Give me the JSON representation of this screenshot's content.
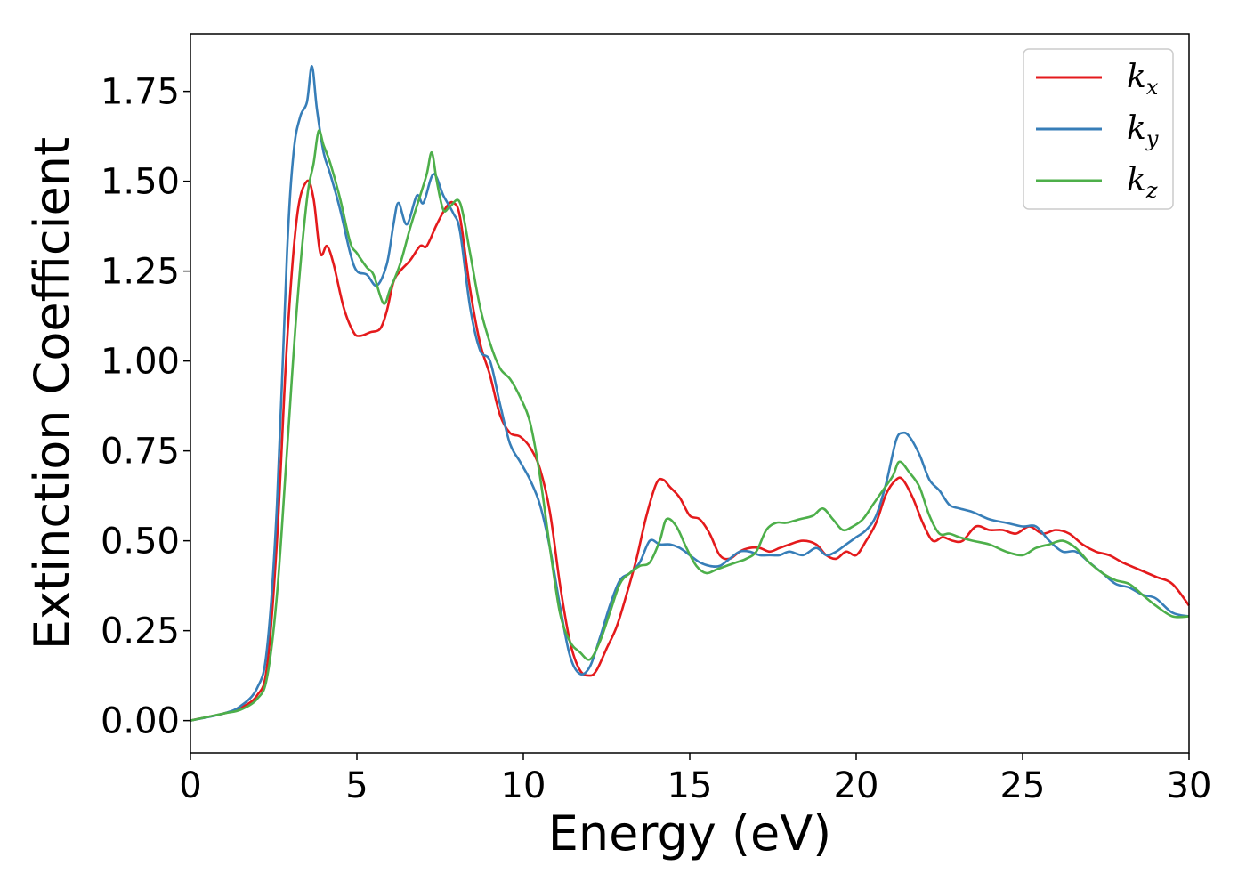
{
  "chart_data": {
    "type": "line",
    "title": "",
    "xlabel": "Energy (eV)",
    "ylabel": "Extinction Coefficient",
    "xlim": [
      0,
      30
    ],
    "ylim": [
      -0.09,
      1.91
    ],
    "xticks": [
      0,
      5,
      10,
      15,
      20,
      25,
      30
    ],
    "xtick_labels": [
      "0",
      "5",
      "10",
      "15",
      "20",
      "25",
      "30"
    ],
    "yticks": [
      0,
      0.25,
      0.5,
      0.75,
      1.0,
      1.25,
      1.5,
      1.75
    ],
    "ytick_labels": [
      "0.00",
      "0.25",
      "0.50",
      "0.75",
      "1.00",
      "1.25",
      "1.50",
      "1.75"
    ],
    "grid": false,
    "legend_position": "top-right",
    "series": [
      {
        "name": "k_x",
        "label_base": "k",
        "label_sub": "x",
        "color": "#e41a1c",
        "x": [
          0,
          1,
          1.5,
          2,
          2.3,
          2.6,
          2.9,
          3.2,
          3.5,
          3.7,
          3.9,
          4.1,
          4.3,
          4.6,
          4.9,
          5.1,
          5.4,
          5.7,
          5.9,
          6.1,
          6.3,
          6.6,
          6.9,
          7.1,
          7.4,
          7.7,
          7.9,
          8.1,
          8.4,
          8.7,
          9.0,
          9.3,
          9.6,
          9.9,
          10.2,
          10.5,
          10.8,
          11.1,
          11.4,
          11.7,
          12.0,
          12.2,
          12.5,
          12.8,
          13.1,
          13.4,
          13.7,
          14.0,
          14.2,
          14.4,
          14.7,
          15.0,
          15.3,
          15.6,
          15.9,
          16.2,
          16.5,
          16.8,
          17.1,
          17.4,
          17.7,
          18.0,
          18.4,
          18.8,
          19.1,
          19.4,
          19.7,
          20.0,
          20.3,
          20.6,
          20.9,
          21.2,
          21.4,
          21.7,
          22.0,
          22.3,
          22.6,
          22.9,
          23.2,
          23.6,
          24.0,
          24.4,
          24.8,
          25.2,
          25.6,
          26.0,
          26.4,
          26.8,
          27.2,
          27.6,
          28.0,
          28.5,
          29.0,
          29.5,
          30.0
        ],
        "y": [
          0.0,
          0.02,
          0.035,
          0.07,
          0.15,
          0.5,
          1.05,
          1.4,
          1.5,
          1.45,
          1.3,
          1.32,
          1.27,
          1.15,
          1.08,
          1.07,
          1.08,
          1.09,
          1.14,
          1.22,
          1.25,
          1.28,
          1.32,
          1.32,
          1.38,
          1.43,
          1.44,
          1.4,
          1.2,
          1.05,
          0.96,
          0.85,
          0.8,
          0.79,
          0.76,
          0.7,
          0.58,
          0.38,
          0.22,
          0.14,
          0.125,
          0.14,
          0.2,
          0.26,
          0.35,
          0.45,
          0.57,
          0.66,
          0.67,
          0.65,
          0.62,
          0.57,
          0.56,
          0.52,
          0.46,
          0.45,
          0.47,
          0.48,
          0.48,
          0.47,
          0.48,
          0.49,
          0.5,
          0.49,
          0.46,
          0.45,
          0.47,
          0.46,
          0.5,
          0.55,
          0.63,
          0.67,
          0.67,
          0.62,
          0.55,
          0.5,
          0.51,
          0.5,
          0.5,
          0.54,
          0.53,
          0.53,
          0.52,
          0.54,
          0.52,
          0.53,
          0.52,
          0.49,
          0.47,
          0.46,
          0.44,
          0.42,
          0.4,
          0.38,
          0.32
        ]
      },
      {
        "name": "k_y",
        "label_base": "k",
        "label_sub": "y",
        "color": "#377eb8",
        "x": [
          0,
          1,
          1.5,
          2,
          2.3,
          2.6,
          2.9,
          3.1,
          3.3,
          3.5,
          3.65,
          3.8,
          4.0,
          4.2,
          4.5,
          4.8,
          5.0,
          5.3,
          5.6,
          5.9,
          6.1,
          6.25,
          6.5,
          6.8,
          7.0,
          7.3,
          7.6,
          7.9,
          8.1,
          8.4,
          8.7,
          9.0,
          9.3,
          9.6,
          9.9,
          10.2,
          10.5,
          10.8,
          11.1,
          11.4,
          11.7,
          12.0,
          12.3,
          12.6,
          12.9,
          13.2,
          13.5,
          13.8,
          14.1,
          14.4,
          14.7,
          15.0,
          15.3,
          15.6,
          15.9,
          16.2,
          16.5,
          16.8,
          17.1,
          17.4,
          17.7,
          18.0,
          18.4,
          18.8,
          19.1,
          19.4,
          19.7,
          20.0,
          20.3,
          20.6,
          20.9,
          21.2,
          21.4,
          21.6,
          21.9,
          22.2,
          22.5,
          22.8,
          23.1,
          23.5,
          24.0,
          24.5,
          25.0,
          25.4,
          25.8,
          26.2,
          26.6,
          27.0,
          27.4,
          27.8,
          28.2,
          28.6,
          29.0,
          29.5,
          30.0
        ],
        "y": [
          0.0,
          0.02,
          0.04,
          0.09,
          0.2,
          0.6,
          1.3,
          1.58,
          1.68,
          1.72,
          1.82,
          1.7,
          1.58,
          1.52,
          1.42,
          1.3,
          1.25,
          1.24,
          1.21,
          1.27,
          1.38,
          1.44,
          1.38,
          1.46,
          1.44,
          1.52,
          1.46,
          1.41,
          1.36,
          1.15,
          1.03,
          1.0,
          0.88,
          0.77,
          0.72,
          0.67,
          0.6,
          0.48,
          0.32,
          0.18,
          0.13,
          0.15,
          0.23,
          0.32,
          0.39,
          0.41,
          0.44,
          0.5,
          0.49,
          0.49,
          0.48,
          0.46,
          0.44,
          0.43,
          0.43,
          0.45,
          0.47,
          0.47,
          0.46,
          0.46,
          0.46,
          0.47,
          0.46,
          0.48,
          0.46,
          0.47,
          0.49,
          0.51,
          0.53,
          0.57,
          0.66,
          0.78,
          0.8,
          0.79,
          0.74,
          0.67,
          0.64,
          0.6,
          0.59,
          0.58,
          0.56,
          0.55,
          0.54,
          0.54,
          0.5,
          0.47,
          0.47,
          0.44,
          0.41,
          0.38,
          0.37,
          0.35,
          0.34,
          0.3,
          0.29
        ]
      },
      {
        "name": "k_z",
        "label_base": "k",
        "label_sub": "z",
        "color": "#4daf4a",
        "x": [
          0,
          1,
          1.5,
          2,
          2.3,
          2.6,
          2.9,
          3.2,
          3.5,
          3.7,
          3.85,
          4.0,
          4.2,
          4.5,
          4.8,
          5.0,
          5.3,
          5.5,
          5.8,
          6.0,
          6.3,
          6.6,
          6.9,
          7.1,
          7.25,
          7.4,
          7.6,
          7.8,
          8.1,
          8.4,
          8.7,
          9.0,
          9.3,
          9.6,
          9.9,
          10.2,
          10.5,
          10.8,
          11.1,
          11.4,
          11.7,
          12.0,
          12.3,
          12.6,
          12.9,
          13.2,
          13.5,
          13.8,
          14.1,
          14.3,
          14.6,
          14.9,
          15.2,
          15.5,
          15.8,
          16.1,
          16.4,
          16.7,
          17.0,
          17.3,
          17.6,
          17.9,
          18.3,
          18.7,
          19.0,
          19.3,
          19.6,
          19.9,
          20.2,
          20.5,
          20.8,
          21.1,
          21.3,
          21.6,
          21.9,
          22.2,
          22.5,
          22.8,
          23.1,
          23.5,
          24.0,
          24.5,
          25.0,
          25.4,
          25.8,
          26.2,
          26.6,
          27.0,
          27.4,
          27.8,
          28.2,
          28.6,
          29.0,
          29.5,
          30.0
        ],
        "y": [
          0.0,
          0.02,
          0.03,
          0.06,
          0.12,
          0.35,
          0.75,
          1.15,
          1.45,
          1.55,
          1.64,
          1.6,
          1.55,
          1.45,
          1.33,
          1.3,
          1.26,
          1.24,
          1.16,
          1.2,
          1.27,
          1.37,
          1.46,
          1.52,
          1.58,
          1.5,
          1.42,
          1.43,
          1.44,
          1.3,
          1.15,
          1.05,
          0.98,
          0.95,
          0.9,
          0.83,
          0.68,
          0.48,
          0.3,
          0.22,
          0.19,
          0.17,
          0.22,
          0.3,
          0.38,
          0.41,
          0.43,
          0.44,
          0.5,
          0.56,
          0.54,
          0.48,
          0.43,
          0.41,
          0.42,
          0.43,
          0.44,
          0.45,
          0.47,
          0.53,
          0.55,
          0.55,
          0.56,
          0.57,
          0.59,
          0.56,
          0.53,
          0.54,
          0.56,
          0.6,
          0.64,
          0.68,
          0.72,
          0.69,
          0.65,
          0.57,
          0.52,
          0.52,
          0.51,
          0.5,
          0.49,
          0.47,
          0.46,
          0.48,
          0.49,
          0.5,
          0.48,
          0.44,
          0.41,
          0.39,
          0.38,
          0.35,
          0.32,
          0.29,
          0.29
        ]
      }
    ]
  }
}
